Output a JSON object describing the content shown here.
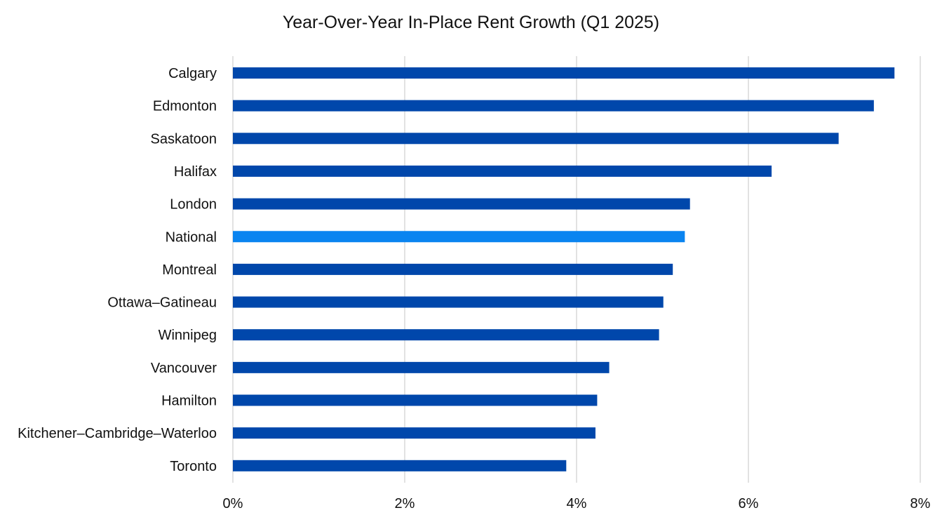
{
  "chart_data": {
    "type": "bar",
    "orientation": "horizontal",
    "title": "Year-Over-Year In-Place Rent Growth (Q1 2025)",
    "xlabel": "",
    "ylabel": "",
    "xlim": [
      0,
      8
    ],
    "x_ticks": [
      0,
      2,
      4,
      6,
      8
    ],
    "x_tick_labels": [
      "0%",
      "2%",
      "4%",
      "6%",
      "8%"
    ],
    "grid": "vertical",
    "legend": "none",
    "categories": [
      "Calgary",
      "Edmonton",
      "Saskatoon",
      "Halifax",
      "London",
      "National",
      "Montreal",
      "Ottawa–Gatineau",
      "Winnipeg",
      "Vancouver",
      "Hamilton",
      "Kitchener–Cambridge–Waterloo",
      "Toronto"
    ],
    "values": [
      7.7,
      7.46,
      7.05,
      6.27,
      5.32,
      5.26,
      5.12,
      5.01,
      4.96,
      4.38,
      4.24,
      4.22,
      3.88
    ],
    "highlight_category": "National",
    "colors": {
      "bar": "#0047AB",
      "highlight": "#0A84F0",
      "grid": "#D9D9D9",
      "text": "#111111"
    }
  }
}
